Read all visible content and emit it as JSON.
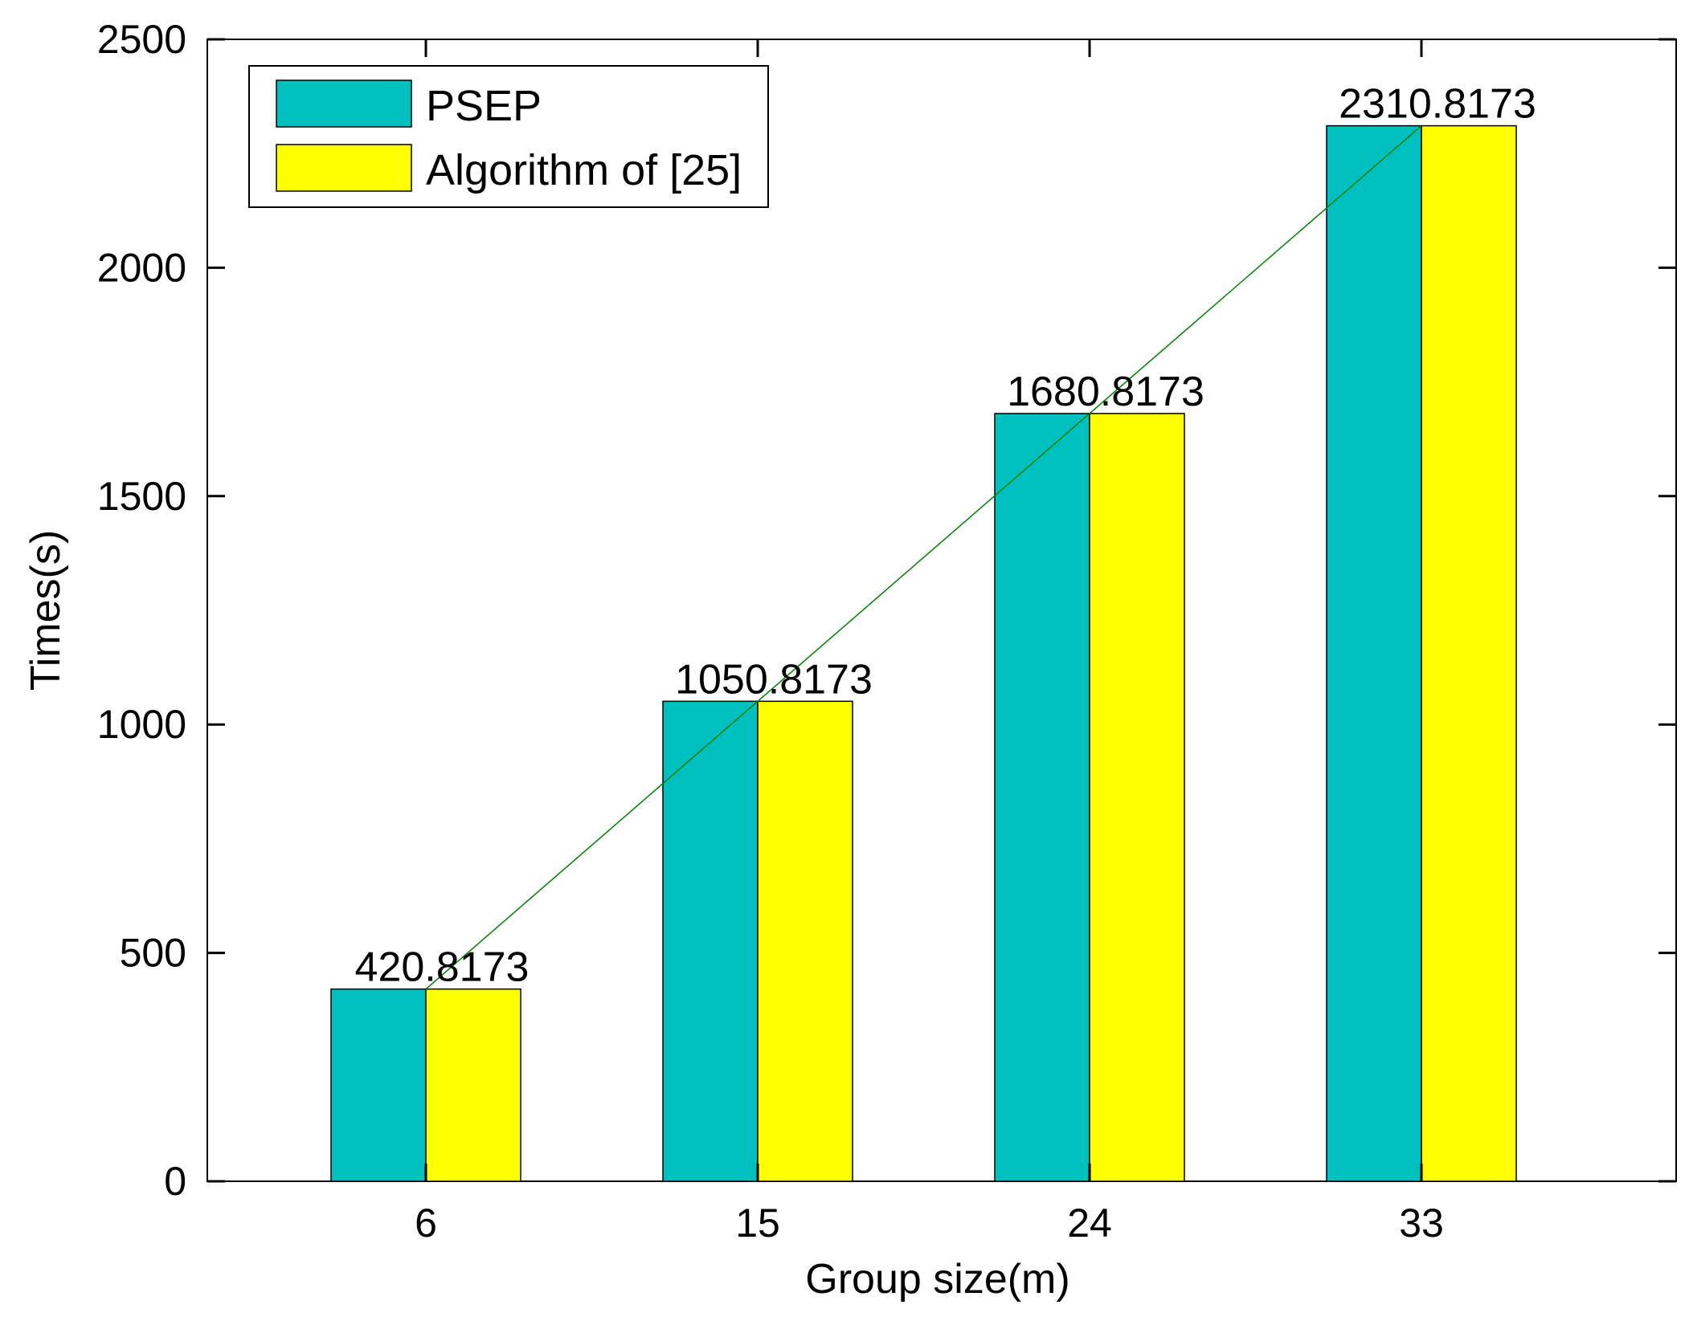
{
  "chart_data": {
    "type": "bar",
    "title": "",
    "xlabel": "Group size(m)",
    "ylabel": "Times(s)",
    "categories": [
      "6",
      "15",
      "24",
      "33"
    ],
    "ylim": [
      0,
      2500
    ],
    "yticks": [
      "0",
      "500",
      "1000",
      "1500",
      "2000",
      "2500"
    ],
    "series": [
      {
        "name": "PSEP",
        "color": "#00bfbf",
        "values": [
          420.8173,
          1050.8173,
          1680.8173,
          2310.8173
        ]
      },
      {
        "name": "Algorithm of [25]",
        "color": "#ffff00",
        "values": [
          420.8173,
          1050.8173,
          1680.8173,
          2310.8173
        ]
      }
    ],
    "data_labels": [
      "420.8173",
      "1050.8173",
      "1680.8173",
      "2310.8173"
    ],
    "trend_line": {
      "color": "#008000",
      "values": [
        420.8173,
        1050.8173,
        1680.8173,
        2310.8173
      ]
    },
    "legend_position": "top-left",
    "grid": false
  }
}
